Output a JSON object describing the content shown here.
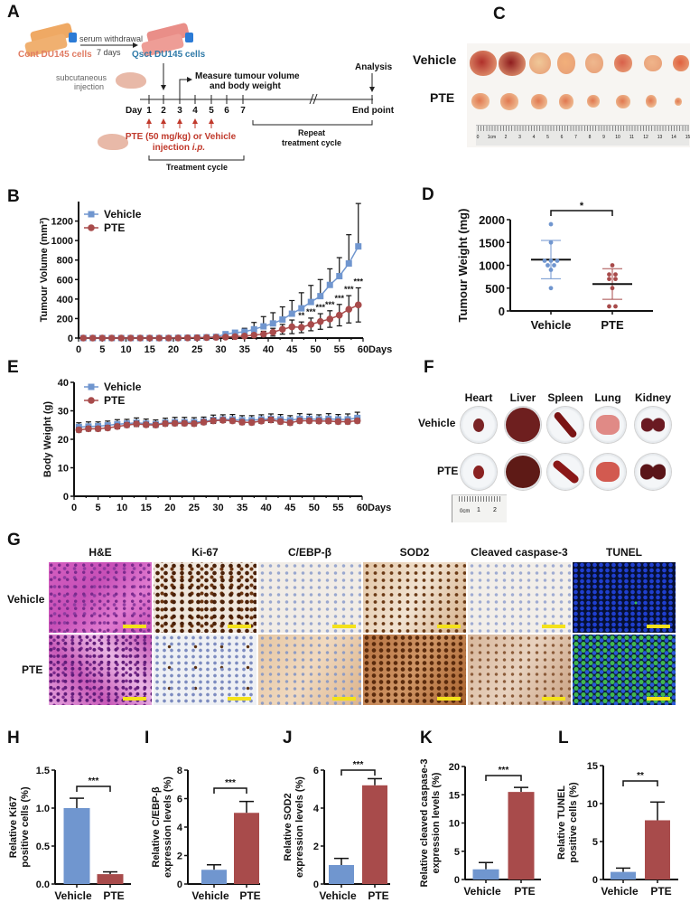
{
  "panel_labels": {
    "a": "A",
    "b": "B",
    "c": "C",
    "d": "D",
    "e": "E",
    "f": "F",
    "g": "G",
    "h": "H",
    "i": "I",
    "j": "J",
    "k": "K",
    "l": "L"
  },
  "colors": {
    "vehicle": "#7096cf",
    "pte": "#a84b4b",
    "cont_cells": "#e07b63",
    "qsct_cells": "#2f7aa8",
    "injection": "#c0392b"
  },
  "panel_a": {
    "cont_cells": "Cont DU145 cells",
    "serum_withdrawal": "serum withdrawal",
    "duration": "7 days",
    "qsct_cells": "Qsct DU145 cells",
    "subcutaneous": "subcutaneous",
    "injection": "injection",
    "measure_line1": "Measure tumour volume",
    "measure_line2": "and body weight",
    "analysis": "Analysis",
    "day": "Day",
    "days": [
      "1",
      "2",
      "3",
      "4",
      "5",
      "6",
      "7"
    ],
    "end_point": "End point",
    "treatment_line1": "PTE (50 mg/kg) or Vehicle",
    "treatment_line2": "injection ",
    "treatment_route": "i.p.",
    "treatment_cycle": "Treatment cycle",
    "repeat_line1": "Repeat",
    "repeat_line2": "treatment cycle"
  },
  "panel_c": {
    "row_labels": [
      "Vehicle",
      "PTE"
    ],
    "ruler_ticks": [
      "0",
      "1cm",
      "2",
      "3",
      "4",
      "5",
      "6",
      "7",
      "8",
      "9",
      "10",
      "11",
      "12",
      "13",
      "14",
      "15"
    ]
  },
  "panel_f": {
    "organs": [
      "Heart",
      "Liver",
      "Spleen",
      "Lung",
      "Kidney"
    ],
    "row_labels": [
      "Vehicle",
      "PTE"
    ],
    "ruler_labels": [
      "0cm",
      "1",
      "2"
    ]
  },
  "panel_g": {
    "stains": [
      "H&E",
      "Ki-67",
      "C/EBP-β",
      "SOD2",
      "Cleaved caspase-3",
      "TUNEL"
    ],
    "row_labels": [
      "Vehicle",
      "PTE"
    ]
  },
  "chart_data": [
    {
      "id": "B",
      "type": "line",
      "ylabel": "Tumour Volume (mm³)",
      "xlabel": "Days",
      "xlim": [
        0,
        60
      ],
      "ylim": [
        0,
        1400
      ],
      "xticks": [
        0,
        5,
        10,
        15,
        20,
        25,
        30,
        35,
        40,
        45,
        50,
        55,
        60
      ],
      "yticks": [
        0,
        200,
        400,
        600,
        800,
        1000,
        1200
      ],
      "legend": "top-left",
      "grid": false,
      "x": [
        1,
        3,
        5,
        7,
        9,
        11,
        13,
        15,
        17,
        19,
        21,
        23,
        25,
        27,
        29,
        31,
        33,
        35,
        37,
        39,
        41,
        43,
        45,
        47,
        49,
        51,
        53,
        55,
        57,
        59
      ],
      "series": [
        {
          "name": "Vehicle",
          "marker": "square",
          "values": [
            0,
            0,
            0,
            0,
            0,
            0,
            0,
            0,
            0,
            0,
            2,
            3,
            5,
            8,
            12,
            40,
            55,
            65,
            90,
            120,
            150,
            190,
            250,
            305,
            370,
            430,
            545,
            635,
            765,
            940
          ],
          "error": [
            0,
            0,
            0,
            0,
            0,
            0,
            0,
            0,
            0,
            0,
            2,
            3,
            4,
            6,
            8,
            15,
            20,
            35,
            70,
            100,
            110,
            130,
            135,
            160,
            170,
            170,
            165,
            190,
            295,
            440
          ]
        },
        {
          "name": "PTE",
          "marker": "circle",
          "values": [
            0,
            0,
            0,
            0,
            0,
            0,
            0,
            0,
            0,
            0,
            1,
            2,
            3,
            5,
            8,
            10,
            15,
            20,
            30,
            40,
            60,
            90,
            115,
            110,
            140,
            170,
            195,
            235,
            295,
            340
          ],
          "error": [
            0,
            0,
            0,
            0,
            0,
            0,
            0,
            0,
            0,
            0,
            1,
            2,
            3,
            4,
            6,
            8,
            10,
            12,
            20,
            30,
            40,
            50,
            70,
            55,
            65,
            80,
            85,
            110,
            140,
            175
          ]
        }
      ],
      "annotations": [
        {
          "x": 47,
          "text": "**"
        },
        {
          "x": 49,
          "text": "***"
        },
        {
          "x": 51,
          "text": "***"
        },
        {
          "x": 53,
          "text": "***"
        },
        {
          "x": 55,
          "text": "***"
        },
        {
          "x": 57,
          "text": "***"
        },
        {
          "x": 59,
          "text": "***"
        }
      ]
    },
    {
      "id": "D",
      "type": "scatter",
      "ylabel": "Tumour Weight (mg)",
      "categories": [
        "Vehicle",
        "PTE"
      ],
      "ylim": [
        0,
        2000
      ],
      "yticks": [
        0,
        500,
        1000,
        1500,
        2000
      ],
      "series": [
        {
          "name": "Vehicle",
          "values": [
            1900,
            1500,
            1100,
            1100,
            1100,
            1000,
            1000,
            900,
            500
          ],
          "mean": 1125,
          "sd": 420
        },
        {
          "name": "PTE",
          "values": [
            1000,
            800,
            800,
            700,
            700,
            500,
            100,
            100
          ],
          "mean": 590,
          "sd": 335
        }
      ],
      "significance": "*"
    },
    {
      "id": "E",
      "type": "line",
      "ylabel": "Body Weight (g)",
      "xlabel": "Days",
      "xlim": [
        0,
        60
      ],
      "ylim": [
        0,
        40
      ],
      "xticks": [
        0,
        5,
        10,
        15,
        20,
        25,
        30,
        35,
        40,
        45,
        50,
        55,
        60
      ],
      "yticks": [
        0,
        10,
        20,
        30,
        40
      ],
      "legend": "top-left",
      "grid": false,
      "x": [
        1,
        3,
        5,
        7,
        9,
        11,
        13,
        15,
        17,
        19,
        21,
        23,
        25,
        27,
        29,
        31,
        33,
        35,
        37,
        39,
        41,
        43,
        45,
        47,
        49,
        51,
        53,
        55,
        57,
        59
      ],
      "series": [
        {
          "name": "Vehicle",
          "marker": "square",
          "values": [
            24.3,
            24.5,
            24.6,
            24.9,
            25.3,
            25.5,
            25.8,
            25.5,
            25.3,
            25.8,
            26.0,
            26.0,
            26.0,
            26.3,
            26.8,
            27.0,
            27.0,
            26.7,
            26.7,
            27.0,
            27.2,
            27.0,
            26.7,
            27.2,
            27.2,
            27.0,
            27.2,
            27.0,
            27.0,
            27.5
          ],
          "error": [
            1.5,
            1.6,
            1.5,
            1.5,
            1.6,
            1.5,
            1.7,
            1.6,
            1.5,
            1.6,
            1.7,
            1.7,
            1.6,
            1.5,
            1.7,
            1.6,
            1.7,
            1.6,
            1.6,
            1.6,
            1.7,
            1.7,
            1.6,
            1.8,
            1.6,
            1.6,
            1.8,
            1.7,
            1.9,
            2.0
          ]
        },
        {
          "name": "PTE",
          "marker": "circle",
          "values": [
            23.3,
            23.7,
            23.7,
            24.0,
            24.5,
            25.0,
            25.4,
            25.1,
            25.0,
            25.5,
            25.6,
            25.6,
            25.5,
            26.0,
            26.5,
            26.7,
            26.5,
            26.0,
            25.9,
            26.4,
            26.8,
            26.2,
            25.8,
            26.5,
            26.5,
            26.4,
            26.4,
            26.2,
            26.2,
            26.5
          ],
          "error": [
            0.8,
            0.8,
            0.8,
            0.8,
            0.8,
            0.8,
            0.9,
            0.8,
            0.8,
            0.8,
            0.8,
            0.8,
            0.8,
            0.8,
            0.9,
            0.8,
            0.8,
            0.8,
            0.8,
            0.8,
            0.9,
            0.8,
            0.8,
            0.8,
            0.8,
            0.8,
            0.8,
            0.8,
            0.8,
            0.8
          ]
        }
      ]
    },
    {
      "id": "H",
      "type": "bar",
      "ylabel": [
        "Relative Ki67",
        "positive cells (%)"
      ],
      "categories": [
        "Vehicle",
        "PTE"
      ],
      "values": [
        1.0,
        0.13
      ],
      "errors": [
        0.13,
        0.03
      ],
      "ylim": [
        0,
        1.5
      ],
      "yticks": [
        "0.0",
        "0.5",
        "1.0",
        "1.5"
      ],
      "significance": "***"
    },
    {
      "id": "I",
      "type": "bar",
      "ylabel": [
        "Relative C/EBP-β",
        "expression levels (%)"
      ],
      "categories": [
        "Vehicle",
        "PTE"
      ],
      "values": [
        1.0,
        5.0
      ],
      "errors": [
        0.35,
        0.8
      ],
      "ylim": [
        0,
        8
      ],
      "yticks": [
        "0",
        "2",
        "4",
        "6",
        "8"
      ],
      "significance": "***"
    },
    {
      "id": "J",
      "type": "bar",
      "ylabel": [
        "Relative SOD2",
        "expression levels (%)"
      ],
      "categories": [
        "Vehicle",
        "PTE"
      ],
      "values": [
        1.0,
        5.2
      ],
      "errors": [
        0.35,
        0.35
      ],
      "ylim": [
        0,
        6
      ],
      "yticks": [
        "0",
        "2",
        "4",
        "6"
      ],
      "significance": "***"
    },
    {
      "id": "K",
      "type": "bar",
      "ylabel": [
        "Relative cleaved caspase-3",
        "expression levels (%)"
      ],
      "categories": [
        "Vehicle",
        "PTE"
      ],
      "values": [
        1.8,
        15.5
      ],
      "errors": [
        1.2,
        0.8
      ],
      "ylim": [
        0,
        20
      ],
      "yticks": [
        "0",
        "5",
        "10",
        "15",
        "20"
      ],
      "significance": "***"
    },
    {
      "id": "L",
      "type": "bar",
      "ylabel": [
        "Relative TUNEL",
        "positive cells (%)"
      ],
      "categories": [
        "Vehicle",
        "PTE"
      ],
      "values": [
        1.0,
        7.8
      ],
      "errors": [
        0.5,
        2.4
      ],
      "ylim": [
        0,
        15
      ],
      "yticks": [
        "0",
        "5",
        "10",
        "15"
      ],
      "significance": "**"
    }
  ]
}
